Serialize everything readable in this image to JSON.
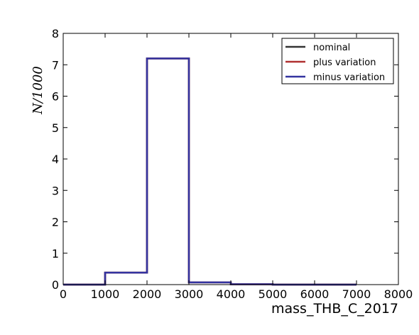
{
  "chart_data": {
    "type": "line",
    "title": "",
    "xlabel": "mass_THB_C_2017",
    "ylabel": "N/1000",
    "xlim": [
      0,
      8000
    ],
    "ylim": [
      0,
      8
    ],
    "xticks": [
      "0",
      "1000",
      "2000",
      "3000",
      "4000",
      "5000",
      "6000",
      "7000",
      "8000"
    ],
    "yticks": [
      "0",
      "1",
      "2",
      "3",
      "4",
      "5",
      "6",
      "7",
      "8"
    ],
    "grid": false,
    "legend_position": "top-right",
    "bin_edges": [
      0,
      1000,
      2000,
      3000,
      4000,
      5000,
      6000,
      7000
    ],
    "series": [
      {
        "name": "nominal",
        "color": "#333333",
        "values": [
          0,
          0.38,
          7.2,
          0.07,
          0.01,
          0,
          0
        ]
      },
      {
        "name": "plus variation",
        "color": "#b03030",
        "values": [
          0,
          0.38,
          7.2,
          0.07,
          0.01,
          0,
          0
        ]
      },
      {
        "name": "minus variation",
        "color": "#3333a0",
        "values": [
          0,
          0.38,
          7.2,
          0.07,
          0.01,
          0,
          0
        ]
      }
    ]
  }
}
